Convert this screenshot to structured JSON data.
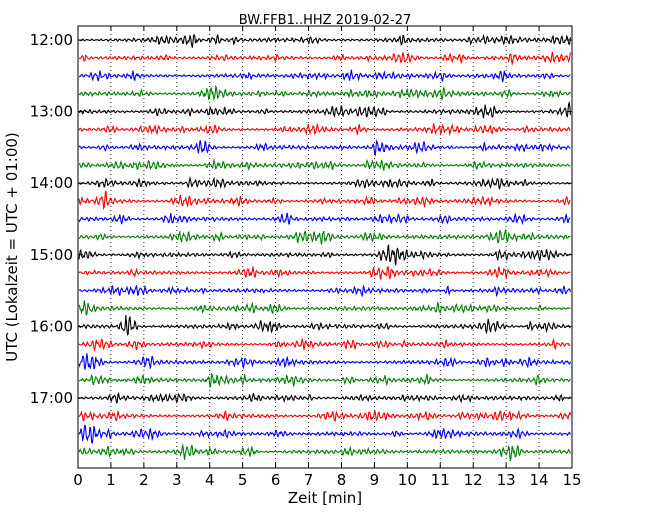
{
  "chart_data": {
    "type": "line",
    "title": "BW.FFB1..HHZ 2019-02-27",
    "xlabel": "Zeit  [min]",
    "ylabel": "UTC (Lokalzeit = UTC + 01:00)",
    "xlim": [
      0,
      15
    ],
    "x_ticks": [
      0,
      1,
      2,
      3,
      4,
      5,
      6,
      7,
      8,
      9,
      10,
      11,
      12,
      13,
      14,
      15
    ],
    "y_tick_labels": [
      "12:00",
      "13:00",
      "14:00",
      "15:00",
      "16:00",
      "17:00"
    ],
    "trace_start": "12:00",
    "trace_interval_minutes": 15,
    "trace_count": 24,
    "trace_colors": [
      "#000000",
      "#ff0000",
      "#0000ff",
      "#008000"
    ],
    "grid": "vertical dotted at each minute",
    "legend": "none"
  }
}
